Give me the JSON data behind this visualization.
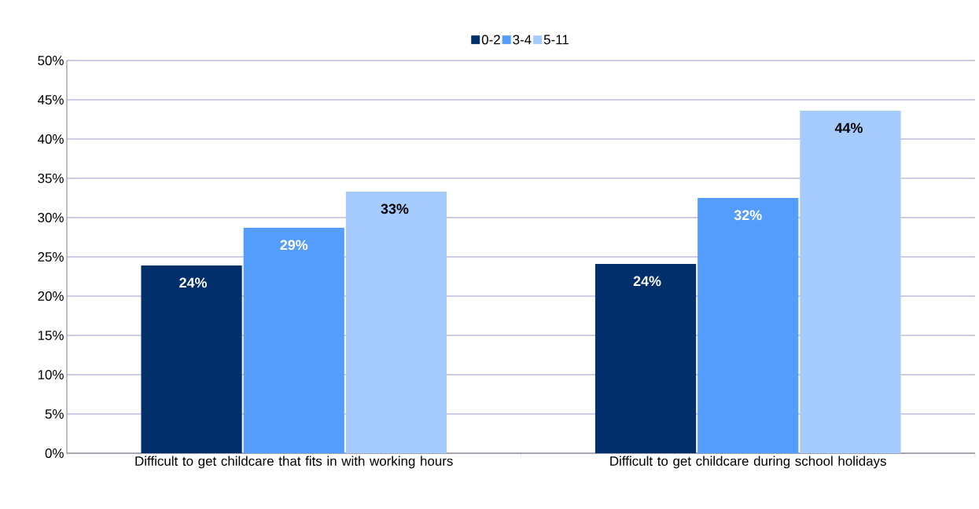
{
  "chart_data": {
    "type": "bar",
    "categories": [
      "Difficult to get childcare that fits in with working hours",
      "Difficult to get childcare during school holidays"
    ],
    "series": [
      {
        "name": "0-2",
        "color": "#002f6c",
        "values": [
          23.9,
          24.1
        ],
        "value_labels": [
          "24%",
          "24%"
        ]
      },
      {
        "name": "3-4",
        "color": "#559dfd",
        "values": [
          28.7,
          32.5
        ],
        "value_labels": [
          "29%",
          "32%"
        ]
      },
      {
        "name": "5-11",
        "color": "#a6cbfe",
        "values": [
          33.3,
          43.6
        ],
        "value_labels": [
          "33%",
          "44%"
        ]
      }
    ],
    "ylim": [
      0,
      50
    ],
    "yticks": [
      {
        "value": 0,
        "label": "0%"
      },
      {
        "value": 5,
        "label": "5%"
      },
      {
        "value": 10,
        "label": "10%"
      },
      {
        "value": 15,
        "label": "15%"
      },
      {
        "value": 20,
        "label": "20%"
      },
      {
        "value": 25,
        "label": "25%"
      },
      {
        "value": 30,
        "label": "30%"
      },
      {
        "value": 35,
        "label": "35%"
      },
      {
        "value": 40,
        "label": "40%"
      },
      {
        "value": 45,
        "label": "45%"
      },
      {
        "value": 50,
        "label": "50%"
      }
    ],
    "grid": "y",
    "legend": "top"
  }
}
